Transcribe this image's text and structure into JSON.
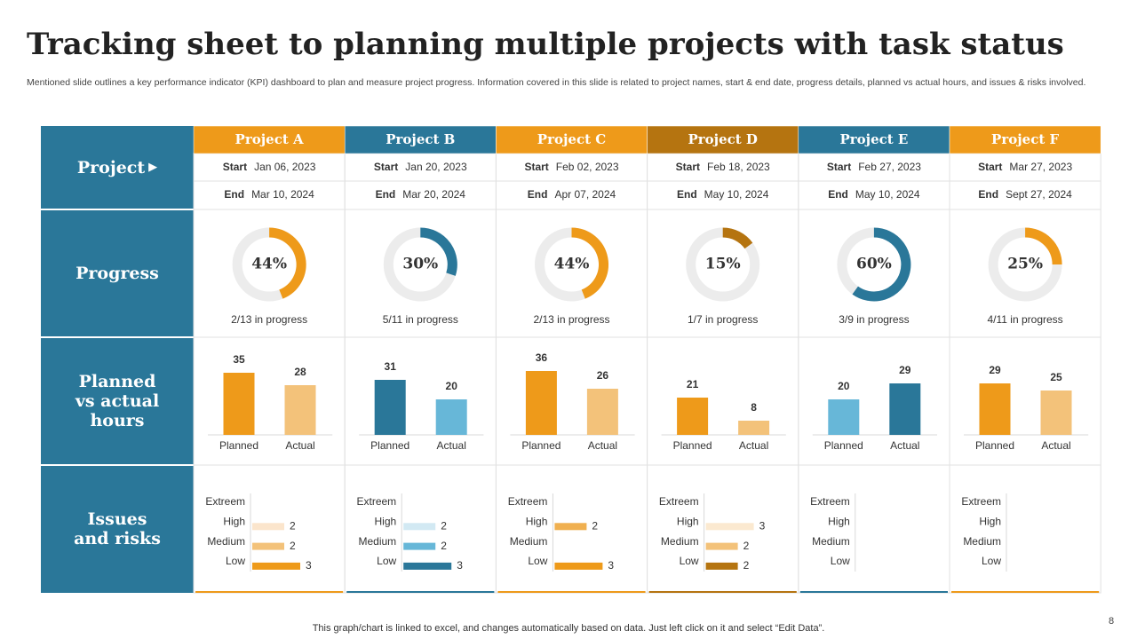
{
  "header": {
    "title": "Tracking sheet to planning multiple projects with task status",
    "subtitle": "Mentioned slide outlines a key performance indicator (KPI) dashboard to plan and measure project progress. Information covered in this slide is related to project names, start & end date, progress details, planned vs actual hours, and issues & risks involved."
  },
  "row_labels": [
    "Project",
    "Progress",
    "Planned vs actual hours",
    "Issues and risks"
  ],
  "start_label": "Start",
  "end_label": "End",
  "hour_labels": [
    "Planned",
    "Actual"
  ],
  "risk_levels": [
    "Extreem",
    "High",
    "Medium",
    "Low"
  ],
  "projects": [
    {
      "name": "Project A",
      "color": "#ee9a1a",
      "start": "Jan 06, 2023",
      "end": "Mar 10, 2024",
      "progress": {
        "value": 44,
        "label": "44%"
      },
      "progress_text": "2/13 in progress",
      "hours": {
        "values": [
          35,
          28
        ],
        "colors": [
          "#ee9a1a",
          "#f3c27a"
        ]
      },
      "risks": {
        "values": [
          null,
          2,
          2,
          3
        ],
        "colors": [
          null,
          "#fbe5cc",
          "#f3c27a",
          "#ee9a1a"
        ]
      }
    },
    {
      "name": "Project B",
      "color": "#2a7799",
      "start": "Jan 20, 2023",
      "end": "Mar 20, 2024",
      "progress": {
        "value": 30,
        "label": "30%"
      },
      "progress_text": "5/11 in progress",
      "hours": {
        "values": [
          31,
          20
        ],
        "colors": [
          "#2a7799",
          "#67b7d8"
        ]
      },
      "risks": {
        "values": [
          null,
          2,
          2,
          3
        ],
        "colors": [
          null,
          "#d2e9f3",
          "#67b7d8",
          "#2a7799"
        ]
      }
    },
    {
      "name": "Project C",
      "color": "#ee9a1a",
      "start": "Feb 02, 2023",
      "end": "Apr 07, 2024",
      "progress": {
        "value": 44,
        "label": "44%"
      },
      "progress_text": "2/13 in progress",
      "hours": {
        "values": [
          36,
          26
        ],
        "colors": [
          "#ee9a1a",
          "#f3c27a"
        ]
      },
      "risks": {
        "values": [
          null,
          2,
          null,
          3
        ],
        "colors": [
          null,
          "#f0b050",
          null,
          "#ee9a1a"
        ]
      }
    },
    {
      "name": "Project D",
      "color": "#b57410",
      "start": "Feb 18, 2023",
      "end": "May 10, 2024",
      "progress": {
        "value": 15,
        "label": "15%"
      },
      "progress_text": "1/7 in progress",
      "hours": {
        "values": [
          21,
          8
        ],
        "colors": [
          "#ee9a1a",
          "#f3c27a"
        ]
      },
      "risks": {
        "values": [
          null,
          3,
          2,
          2
        ],
        "colors": [
          null,
          "#fbe9d0",
          "#f3c27a",
          "#b57410"
        ]
      }
    },
    {
      "name": "Project E",
      "color": "#2a7799",
      "start": "Feb 27, 2023",
      "end": "May 10, 2024",
      "progress": {
        "value": 60,
        "label": "60%"
      },
      "progress_text": "3/9 in progress",
      "hours": {
        "values": [
          20,
          29
        ],
        "colors": [
          "#67b7d8",
          "#2a7799"
        ]
      },
      "risks": {
        "values": [
          null,
          null,
          null,
          null
        ],
        "colors": [
          null,
          null,
          null,
          null
        ]
      }
    },
    {
      "name": "Project F",
      "color": "#ee9a1a",
      "start": "Mar 27, 2023",
      "end": "Sept 27, 2024",
      "progress": {
        "value": 25,
        "label": "25%"
      },
      "progress_text": "4/11 in progress",
      "hours": {
        "values": [
          29,
          25
        ],
        "colors": [
          "#ee9a1a",
          "#f3c27a"
        ]
      },
      "risks": {
        "values": [
          null,
          null,
          null,
          null
        ],
        "colors": [
          null,
          null,
          null,
          null
        ]
      }
    }
  ],
  "footer": {
    "note": "This graph/chart is linked to excel,  and changes automatically based on data. Just left click on it and select “Edit Data”.",
    "page_number": "8"
  }
}
